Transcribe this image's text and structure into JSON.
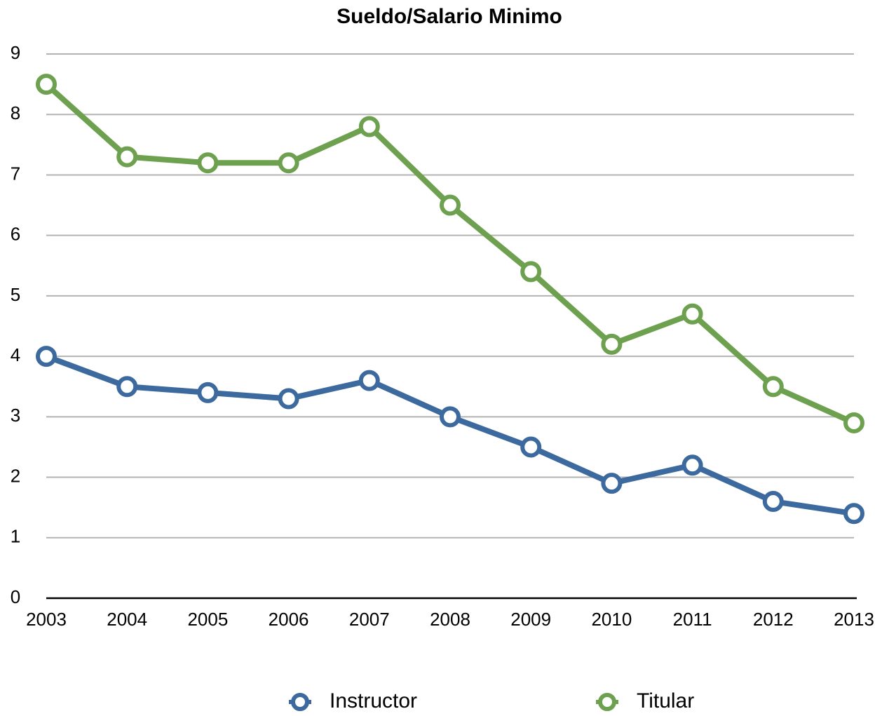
{
  "chart_data": {
    "type": "line",
    "title": "Sueldo/Salario Minimo",
    "categories": [
      "2003",
      "2004",
      "2005",
      "2006",
      "2007",
      "2008",
      "2009",
      "2010",
      "2011",
      "2012",
      "2013"
    ],
    "series": [
      {
        "name": "Instructor",
        "color": "#3d6a9e",
        "values": [
          4,
          3.5,
          3.4,
          3.3,
          3.6,
          3.0,
          2.5,
          1.9,
          2.2,
          1.6,
          1.4
        ]
      },
      {
        "name": "Titular",
        "color": "#6ea14f",
        "values": [
          8.5,
          7.3,
          7.2,
          7.2,
          7.8,
          6.5,
          5.4,
          4.2,
          4.7,
          3.5,
          2.9
        ]
      }
    ],
    "ylim": [
      0,
      9
    ],
    "yticks": [
      0,
      1,
      2,
      3,
      4,
      5,
      6,
      7,
      8,
      9
    ],
    "grid": true,
    "legend": "bottom"
  }
}
